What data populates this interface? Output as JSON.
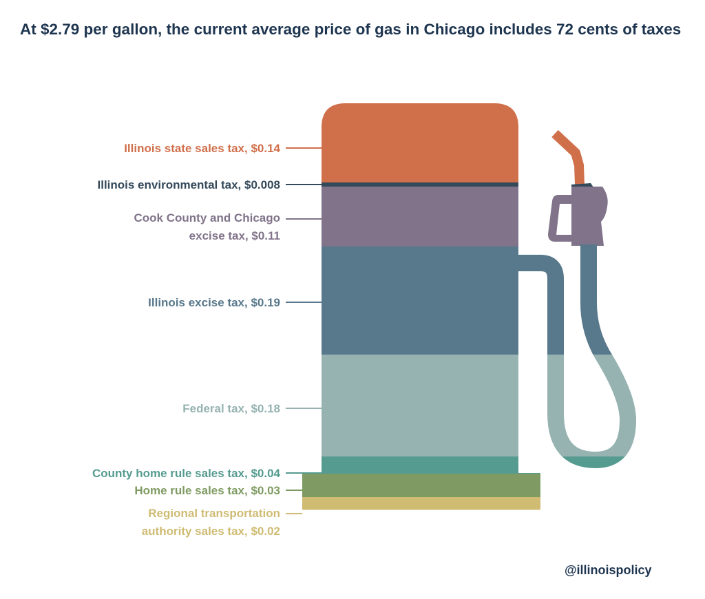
{
  "title": "At $2.79 per gallon, the current average price of gas in Chicago includes 72 cents of taxes",
  "credit": "@illinoispolicy",
  "chart_data": {
    "type": "bar",
    "stacked": true,
    "title": "At $2.79 per gallon, the current average price of gas in Chicago includes 72 cents of taxes",
    "unit": "$ per gallon",
    "categories": [
      "Illinois state sales tax",
      "Illinois environmental tax",
      "Cook County and Chicago excise tax",
      "Illinois excise tax",
      "Federal tax",
      "County home rule sales tax",
      "Home rule sales tax",
      "Regional transportation authority sales tax"
    ],
    "values": [
      0.14,
      0.008,
      0.11,
      0.19,
      0.18,
      0.04,
      0.03,
      0.02
    ],
    "labels": [
      [
        "Illinois state sales tax, $0.14"
      ],
      [
        "Illinois environmental tax, $0.008"
      ],
      [
        "Cook County and Chicago",
        "excise tax, $0.11"
      ],
      [
        "Illinois excise tax, $0.19"
      ],
      [
        "Federal tax, $0.18"
      ],
      [
        "County home rule sales tax, $0.04"
      ],
      [
        "Home rule sales tax, $0.03"
      ],
      [
        "Regional transportation",
        "authority sales tax, $0.02"
      ]
    ],
    "colors": [
      "#d0704b",
      "#34495a",
      "#80738a",
      "#58788b",
      "#96b3b1",
      "#559b8f",
      "#7f9b63",
      "#cfbb72"
    ]
  }
}
